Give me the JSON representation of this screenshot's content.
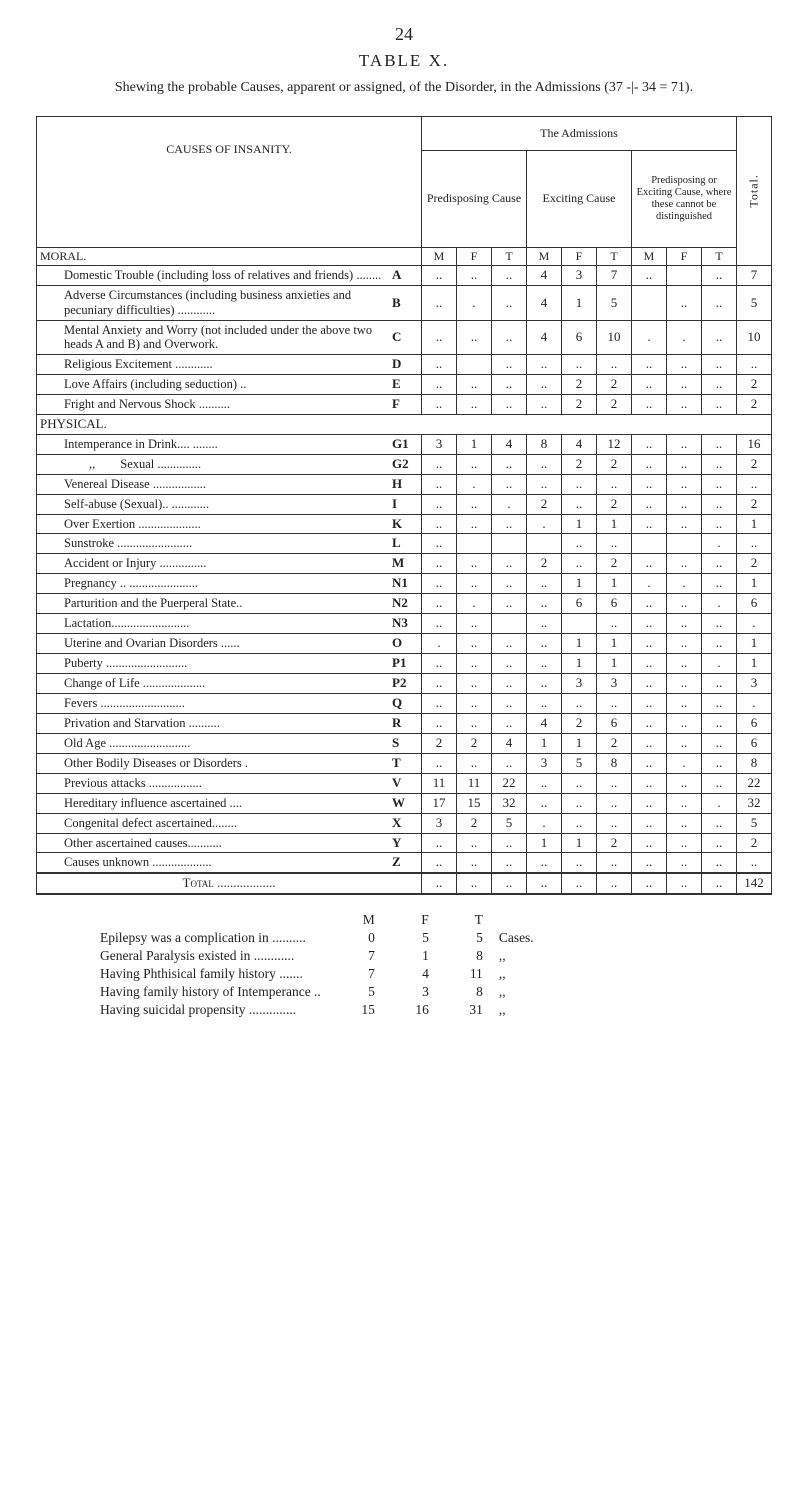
{
  "page_number": "24",
  "table_title": "TABLE X.",
  "subtitle": "Shewing the probable Causes, apparent or assigned, of the Disorder, in the Admissions (37 -|- 34 = 71).",
  "causes_heading": "CAUSES OF INSANITY.",
  "admissions_heading": "The Admissions",
  "col_groups": {
    "predisposing": "Predisposing Cause",
    "exciting": "Exciting Cause",
    "where": "Predisposing or Exciting Cause, where these cannot be distinguished",
    "total": "Total."
  },
  "subcols": [
    "M",
    "F",
    "T"
  ],
  "sections": {
    "moral": "MORAL.",
    "physical": "PHYSICAL."
  },
  "rows": [
    {
      "letter": "A",
      "label": "Domestic Trouble (including loss of relatives and friends) ........",
      "pM": "..",
      "pF": "..",
      "pT": "..",
      "eM": "4",
      "eF": "3",
      "eT": "7",
      "wM": "..",
      "wF": "",
      "wT": "..",
      "tot": "7"
    },
    {
      "letter": "B",
      "label": "Adverse Circumstances (including business anxieties and pecuniary difficulties) ............",
      "pM": "..",
      "pF": ".",
      "pT": "..",
      "eM": "4",
      "eF": "1",
      "eT": "5",
      "wM": "",
      "wF": "..",
      "wT": "..",
      "tot": "5"
    },
    {
      "letter": "C",
      "label": "Mental Anxiety and Worry (not included under the above two heads A and B) and Overwork.",
      "pM": "..",
      "pF": "..",
      "pT": "..",
      "eM": "4",
      "eF": "6",
      "eT": "10",
      "wM": ".",
      "wF": ".",
      "wT": "..",
      "tot": "10"
    },
    {
      "letter": "D",
      "label": "Religious Excitement ............",
      "pM": "..",
      "pF": "",
      "pT": "..",
      "eM": "..",
      "eF": "..",
      "eT": "..",
      "wM": "..",
      "wF": "..",
      "wT": "..",
      "tot": ".."
    },
    {
      "letter": "E",
      "label": "Love Affairs (including seduction) ..",
      "pM": "..",
      "pF": "..",
      "pT": "..",
      "eM": "..",
      "eF": "2",
      "eT": "2",
      "wM": "..",
      "wF": "..",
      "wT": "..",
      "tot": "2"
    },
    {
      "letter": "F",
      "label": "Fright and Nervous Shock ..........",
      "pM": "..",
      "pF": "..",
      "pT": "..",
      "eM": "..",
      "eF": "2",
      "eT": "2",
      "wM": "..",
      "wF": "..",
      "wT": "..",
      "tot": "2"
    },
    {
      "letter": "G1",
      "label": "Intemperance in Drink.... ........",
      "pM": "3",
      "pF": "1",
      "pT": "4",
      "eM": "8",
      "eF": "4",
      "eT": "12",
      "wM": "..",
      "wF": "..",
      "wT": "..",
      "tot": "16"
    },
    {
      "letter": "G2",
      "label": "  ,,  Sexual ..............",
      "pM": "..",
      "pF": "..",
      "pT": "..",
      "eM": "..",
      "eF": "2",
      "eT": "2",
      "wM": "..",
      "wF": "..",
      "wT": "..",
      "tot": "2"
    },
    {
      "letter": "H",
      "label": "Venereal Disease .................",
      "pM": "..",
      "pF": ".",
      "pT": "..",
      "eM": "..",
      "eF": "..",
      "eT": "..",
      "wM": "..",
      "wF": "..",
      "wT": "..",
      "tot": ".."
    },
    {
      "letter": "I",
      "label": "Self-abuse (Sexual).. ............",
      "pM": "..",
      "pF": "..",
      "pT": ".",
      "eM": "2",
      "eF": "..",
      "eT": "2",
      "wM": "..",
      "wF": "..",
      "wT": "..",
      "tot": "2"
    },
    {
      "letter": "K",
      "label": "Over Exertion ....................",
      "pM": "..",
      "pF": "..",
      "pT": "..",
      "eM": ".",
      "eF": "1",
      "eT": "1",
      "wM": "..",
      "wF": "..",
      "wT": "..",
      "tot": "1"
    },
    {
      "letter": "L",
      "label": "Sunstroke ........................",
      "pM": "..",
      "pF": "",
      "pT": "",
      "eM": "",
      "eF": "..",
      "eT": "..",
      "wM": "",
      "wF": "",
      "wT": ".",
      "tot": ".."
    },
    {
      "letter": "M",
      "label": "Accident or Injury ...............",
      "pM": "..",
      "pF": "..",
      "pT": "..",
      "eM": "2",
      "eF": "..",
      "eT": "2",
      "wM": "..",
      "wF": "..",
      "wT": "..",
      "tot": "2"
    },
    {
      "letter": "N1",
      "label": "Pregnancy .. ......................",
      "pM": "..",
      "pF": "..",
      "pT": "..",
      "eM": "..",
      "eF": "1",
      "eT": "1",
      "wM": ".",
      "wF": ".",
      "wT": "..",
      "tot": "1"
    },
    {
      "letter": "N2",
      "label": "Parturition and the Puerperal State..",
      "pM": "..",
      "pF": ".",
      "pT": "..",
      "eM": "..",
      "eF": "6",
      "eT": "6",
      "wM": "..",
      "wF": "..",
      "wT": ".",
      "tot": "6"
    },
    {
      "letter": "N3",
      "label": "Lactation.........................",
      "pM": "..",
      "pF": "..",
      "pT": "",
      "eM": "..",
      "eF": "",
      "eT": "..",
      "wM": "..",
      "wF": "..",
      "wT": "..",
      "tot": "."
    },
    {
      "letter": "O",
      "label": "Uterine and Ovarian Disorders ......",
      "pM": ".",
      "pF": "..",
      "pT": "..",
      "eM": "..",
      "eF": "1",
      "eT": "1",
      "wM": "..",
      "wF": "..",
      "wT": "..",
      "tot": "1"
    },
    {
      "letter": "P1",
      "label": "Puberty ..........................",
      "pM": "..",
      "pF": "..",
      "pT": "..",
      "eM": "..",
      "eF": "1",
      "eT": "1",
      "wM": "..",
      "wF": "..",
      "wT": ".",
      "tot": "1"
    },
    {
      "letter": "P2",
      "label": "Change of Life ....................",
      "pM": "..",
      "pF": "..",
      "pT": "..",
      "eM": "..",
      "eF": "3",
      "eT": "3",
      "wM": "..",
      "wF": "..",
      "wT": "..",
      "tot": "3"
    },
    {
      "letter": "Q",
      "label": "Fevers ...........................",
      "pM": "..",
      "pF": "..",
      "pT": "..",
      "eM": "..",
      "eF": "..",
      "eT": "..",
      "wM": "..",
      "wF": "..",
      "wT": "..",
      "tot": "."
    },
    {
      "letter": "R",
      "label": "Privation and Starvation ..........",
      "pM": "..",
      "pF": "..",
      "pT": "..",
      "eM": "4",
      "eF": "2",
      "eT": "6",
      "wM": "..",
      "wF": "..",
      "wT": "..",
      "tot": "6"
    },
    {
      "letter": "S",
      "label": "Old Age ..........................",
      "pM": "2",
      "pF": "2",
      "pT": "4",
      "eM": "1",
      "eF": "1",
      "eT": "2",
      "wM": "..",
      "wF": "..",
      "wT": "..",
      "tot": "6"
    },
    {
      "letter": "T",
      "label": "Other Bodily Diseases or Disorders .",
      "pM": "..",
      "pF": "..",
      "pT": "..",
      "eM": "3",
      "eF": "5",
      "eT": "8",
      "wM": "..",
      "wF": ".",
      "wT": "..",
      "tot": "8"
    },
    {
      "letter": "V",
      "label": "Previous attacks .................",
      "pM": "11",
      "pF": "11",
      "pT": "22",
      "eM": "..",
      "eF": "..",
      "eT": "..",
      "wM": "..",
      "wF": "..",
      "wT": "..",
      "tot": "22"
    },
    {
      "letter": "W",
      "label": "Hereditary influence ascertained ....",
      "pM": "17",
      "pF": "15",
      "pT": "32",
      "eM": "..",
      "eF": "..",
      "eT": "..",
      "wM": "..",
      "wF": "..",
      "wT": ".",
      "tot": "32"
    },
    {
      "letter": "X",
      "label": "Congenital defect ascertained........",
      "pM": "3",
      "pF": "2",
      "pT": "5",
      "eM": ".",
      "eF": "..",
      "eT": "..",
      "wM": "..",
      "wF": "..",
      "wT": "..",
      "tot": "5"
    },
    {
      "letter": "Y",
      "label": "Other ascertained causes...........",
      "pM": "..",
      "pF": "..",
      "pT": "..",
      "eM": "1",
      "eF": "1",
      "eT": "2",
      "wM": "..",
      "wF": "..",
      "wT": "..",
      "tot": "2"
    },
    {
      "letter": "Z",
      "label": "Causes unknown ...................",
      "pM": "..",
      "pF": "..",
      "pT": "..",
      "eM": "..",
      "eF": "..",
      "eT": "..",
      "wM": "..",
      "wF": "..",
      "wT": "..",
      "tot": ".."
    }
  ],
  "total_row": {
    "label": "Total ..................",
    "pM": "..",
    "pF": "..",
    "pT": "..",
    "eM": "..",
    "eF": "..",
    "eT": "..",
    "wM": "..",
    "wF": "..",
    "wT": "..",
    "tot": "142"
  },
  "footer_header": [
    "M",
    "F",
    "T"
  ],
  "footer": [
    {
      "label": "Epilepsy was a complication in ..........",
      "m": "0",
      "f": "5",
      "t": "5",
      "unit": "Cases."
    },
    {
      "label": "General Paralysis existed in ............",
      "m": "7",
      "f": "1",
      "t": "8",
      "unit": ",,"
    },
    {
      "label": "Having Phthisical family history .......",
      "m": "7",
      "f": "4",
      "t": "11",
      "unit": ",,"
    },
    {
      "label": "Having family history of Intemperance ..",
      "m": "5",
      "f": "3",
      "t": "8",
      "unit": ",,"
    },
    {
      "label": "Having suicidal propensity ..............",
      "m": "15",
      "f": "16",
      "t": "31",
      "unit": ",,"
    }
  ]
}
